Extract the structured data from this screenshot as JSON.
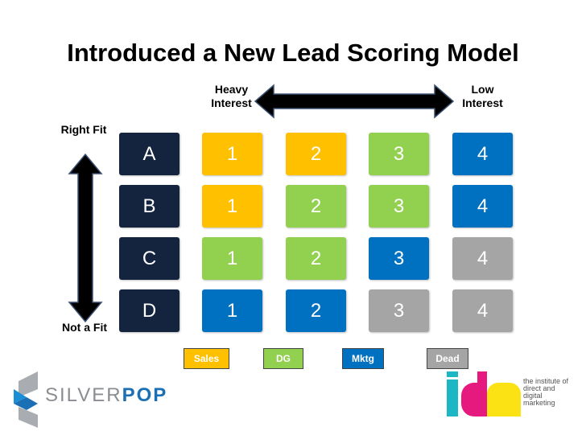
{
  "title": "Introduced a New Lead Scoring Model",
  "axis": {
    "heavy": "Heavy Interest",
    "low": "Low Interest",
    "right_fit": "Right Fit",
    "not_fit": "Not a Fit"
  },
  "colors": {
    "sales": "#FFC000",
    "dg": "#92D050",
    "mktg": "#0070C0",
    "dead": "#A5A5A5",
    "row": "#14243F"
  },
  "rows": [
    {
      "label": "A",
      "cells": [
        {
          "v": "1",
          "c": "sales"
        },
        {
          "v": "2",
          "c": "sales"
        },
        {
          "v": "3",
          "c": "dg"
        },
        {
          "v": "4",
          "c": "mktg"
        }
      ]
    },
    {
      "label": "B",
      "cells": [
        {
          "v": "1",
          "c": "sales"
        },
        {
          "v": "2",
          "c": "dg"
        },
        {
          "v": "3",
          "c": "dg"
        },
        {
          "v": "4",
          "c": "mktg"
        }
      ]
    },
    {
      "label": "C",
      "cells": [
        {
          "v": "1",
          "c": "dg"
        },
        {
          "v": "2",
          "c": "dg"
        },
        {
          "v": "3",
          "c": "mktg"
        },
        {
          "v": "4",
          "c": "dead"
        }
      ]
    },
    {
      "label": "D",
      "cells": [
        {
          "v": "1",
          "c": "mktg"
        },
        {
          "v": "2",
          "c": "mktg"
        },
        {
          "v": "3",
          "c": "dead"
        },
        {
          "v": "4",
          "c": "dead"
        }
      ]
    }
  ],
  "legend": [
    {
      "label": "Sales",
      "c": "sales"
    },
    {
      "label": "DG",
      "c": "dg"
    },
    {
      "label": "Mktg",
      "c": "mktg"
    },
    {
      "label": "Dead",
      "c": "dead"
    }
  ],
  "logos": {
    "silverpop_a": "SILVER",
    "silverpop_b": "POP",
    "idm": "idm",
    "idm_text": "the institute of direct and digital marketing"
  }
}
